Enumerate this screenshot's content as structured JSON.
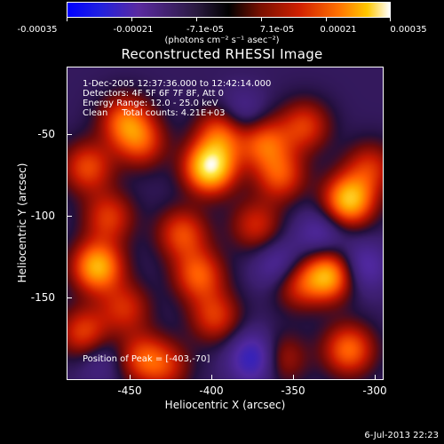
{
  "chart_data": {
    "type": "heatmap",
    "title": "Reconstructed RHESSI Image",
    "xlabel": "Heliocentric X (arcsec)",
    "ylabel": "Heliocentric Y (arcsec)",
    "xlim": [
      -490,
      -297
    ],
    "ylim": [
      -198,
      -10
    ],
    "x_ticks": [
      "-450",
      "-400",
      "-350",
      "-300"
    ],
    "y_ticks": [
      "-50",
      "-100",
      "-150"
    ],
    "colorbar": {
      "ticks": [
        "-0.00035",
        "-0.00021",
        "-7.1e-05",
        "7.1e-05",
        "0.00021",
        "0.00035"
      ],
      "range": [
        -0.00035,
        0.00035
      ],
      "unit_label": "(photons cm⁻² s⁻¹ asec⁻²)"
    },
    "annotations": {
      "time": "1-Dec-2005 12:37:36.000 to 12:42:14.000",
      "detectors": "Detectors: 4F 5F 6F 7F 8F, Att 0",
      "energy": "Energy Range: 12.0 - 25.0 keV",
      "clean": "Clean     Total counts: 4.21E+03",
      "peak": "Position of Peak = [-403,-70]"
    },
    "peak": [
      -403,
      -70
    ],
    "blobs": [
      {
        "x": -403,
        "y": -70,
        "v": 1.0
      },
      {
        "x": -395,
        "y": -48,
        "v": 0.6
      },
      {
        "x": -455,
        "y": -42,
        "v": 0.55
      },
      {
        "x": -445,
        "y": -55,
        "v": 0.45
      },
      {
        "x": -478,
        "y": -70,
        "v": 0.5
      },
      {
        "x": -472,
        "y": -130,
        "v": 0.8
      },
      {
        "x": -465,
        "y": -100,
        "v": 0.45
      },
      {
        "x": -480,
        "y": -170,
        "v": 0.5
      },
      {
        "x": -455,
        "y": -155,
        "v": 0.4
      },
      {
        "x": -445,
        "y": -185,
        "v": 0.45
      },
      {
        "x": -420,
        "y": -110,
        "v": 0.5
      },
      {
        "x": -410,
        "y": -135,
        "v": 0.55
      },
      {
        "x": -400,
        "y": -160,
        "v": 0.45
      },
      {
        "x": -370,
        "y": -55,
        "v": 0.55
      },
      {
        "x": -360,
        "y": -75,
        "v": 0.5
      },
      {
        "x": -345,
        "y": -45,
        "v": 0.45
      },
      {
        "x": -375,
        "y": -105,
        "v": 0.4
      },
      {
        "x": -330,
        "y": -135,
        "v": 0.8
      },
      {
        "x": -350,
        "y": -140,
        "v": 0.45
      },
      {
        "x": -318,
        "y": -90,
        "v": 0.85
      },
      {
        "x": -305,
        "y": -70,
        "v": 0.4
      },
      {
        "x": -318,
        "y": -180,
        "v": 0.6
      },
      {
        "x": -360,
        "y": -185,
        "v": 0.4
      },
      {
        "x": -430,
        "y": -190,
        "v": 0.35
      },
      {
        "x": -385,
        "y": -40,
        "v": -0.35
      },
      {
        "x": -335,
        "y": -110,
        "v": -0.3
      },
      {
        "x": -375,
        "y": -185,
        "v": -0.55
      },
      {
        "x": -310,
        "y": -130,
        "v": -0.35
      },
      {
        "x": -360,
        "y": -130,
        "v": -0.35
      },
      {
        "x": -470,
        "y": -185,
        "v": -0.2
      }
    ]
  },
  "timestamp": "6-Jul-2013 22:23"
}
